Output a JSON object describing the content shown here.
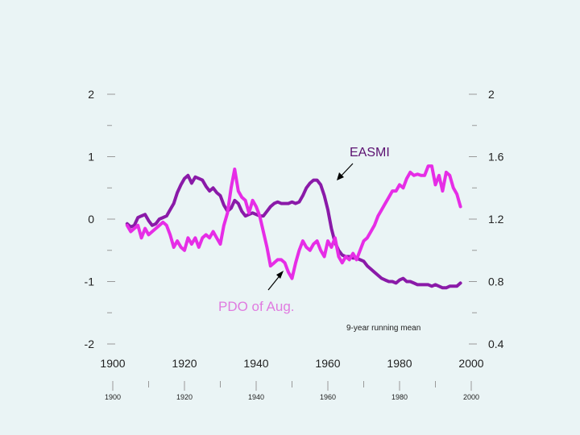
{
  "chart_data": {
    "type": "line",
    "title": "",
    "xlabel": "",
    "ylabel_left": "",
    "ylabel_right": "",
    "xlim": [
      1900,
      2000
    ],
    "ylim_left": [
      -2,
      2
    ],
    "ylim_right": [
      0.4,
      2
    ],
    "grid": false,
    "x_ticks": [
      "1900",
      "1920",
      "1940",
      "1960",
      "1980",
      "2000"
    ],
    "x_ticks_minor_row": [
      "1900",
      "1920",
      "1940",
      "1960",
      "1980",
      "2000"
    ],
    "y_ticks_left": [
      "2",
      "1",
      "0",
      "-1",
      "-2"
    ],
    "y_ticks_right": [
      "2",
      "1.6",
      "1.2",
      "0.8",
      "0.4"
    ],
    "annotations": {
      "easmi": "EASMI",
      "pdo": "PDO of Aug.",
      "note": "9-year running mean"
    },
    "series": [
      {
        "name": "EASMI",
        "axis": "right",
        "color": "#8a1aa8",
        "x": [
          1904,
          1905,
          1906,
          1907,
          1908,
          1909,
          1910,
          1911,
          1912,
          1913,
          1914,
          1915,
          1916,
          1917,
          1918,
          1919,
          1920,
          1921,
          1922,
          1923,
          1924,
          1925,
          1926,
          1927,
          1928,
          1929,
          1930,
          1931,
          1932,
          1933,
          1934,
          1935,
          1936,
          1937,
          1938,
          1939,
          1940,
          1941,
          1942,
          1943,
          1944,
          1945,
          1946,
          1947,
          1948,
          1949,
          1950,
          1951,
          1952,
          1953,
          1954,
          1955,
          1956,
          1957,
          1958,
          1959,
          1960,
          1961,
          1962,
          1963,
          1964,
          1965,
          1966,
          1967,
          1968,
          1969,
          1970,
          1971,
          1972,
          1973,
          1974,
          1975,
          1976,
          1977,
          1978,
          1979,
          1980,
          1981,
          1982,
          1983,
          1984,
          1985,
          1986,
          1987,
          1988,
          1989,
          1990,
          1991,
          1992,
          1993,
          1994,
          1995,
          1996,
          1997
        ],
        "y": [
          1.17,
          1.15,
          1.16,
          1.21,
          1.22,
          1.23,
          1.19,
          1.16,
          1.17,
          1.2,
          1.21,
          1.22,
          1.26,
          1.3,
          1.37,
          1.42,
          1.46,
          1.48,
          1.43,
          1.47,
          1.46,
          1.45,
          1.41,
          1.38,
          1.4,
          1.37,
          1.35,
          1.29,
          1.25,
          1.27,
          1.32,
          1.3,
          1.25,
          1.22,
          1.23,
          1.24,
          1.23,
          1.22,
          1.22,
          1.25,
          1.28,
          1.3,
          1.31,
          1.3,
          1.3,
          1.3,
          1.31,
          1.3,
          1.31,
          1.35,
          1.4,
          1.43,
          1.45,
          1.45,
          1.42,
          1.35,
          1.26,
          1.14,
          1.05,
          1.0,
          0.97,
          0.96,
          0.96,
          0.95,
          0.95,
          0.94,
          0.93,
          0.9,
          0.88,
          0.86,
          0.84,
          0.82,
          0.81,
          0.8,
          0.8,
          0.79,
          0.81,
          0.82,
          0.8,
          0.8,
          0.79,
          0.78,
          0.78,
          0.78,
          0.78,
          0.77,
          0.78,
          0.77,
          0.76,
          0.76,
          0.77,
          0.77,
          0.77,
          0.79
        ]
      },
      {
        "name": "PDO of Aug.",
        "axis": "left",
        "color": "#e62de6",
        "x": [
          1904,
          1905,
          1906,
          1907,
          1908,
          1909,
          1910,
          1911,
          1912,
          1913,
          1914,
          1915,
          1916,
          1917,
          1918,
          1919,
          1920,
          1921,
          1922,
          1923,
          1924,
          1925,
          1926,
          1927,
          1928,
          1929,
          1930,
          1931,
          1932,
          1933,
          1934,
          1935,
          1936,
          1937,
          1938,
          1939,
          1940,
          1941,
          1942,
          1943,
          1944,
          1945,
          1946,
          1947,
          1948,
          1949,
          1950,
          1951,
          1952,
          1953,
          1954,
          1955,
          1956,
          1957,
          1958,
          1959,
          1960,
          1961,
          1962,
          1963,
          1964,
          1965,
          1966,
          1967,
          1968,
          1969,
          1970,
          1971,
          1972,
          1973,
          1974,
          1975,
          1976,
          1977,
          1978,
          1979,
          1980,
          1981,
          1982,
          1983,
          1984,
          1985,
          1986,
          1987,
          1988,
          1989,
          1990,
          1991,
          1992,
          1993,
          1994,
          1995,
          1996,
          1997
        ],
        "y": [
          -0.1,
          -0.2,
          -0.15,
          -0.1,
          -0.3,
          -0.15,
          -0.25,
          -0.2,
          -0.15,
          -0.1,
          -0.05,
          -0.1,
          -0.25,
          -0.45,
          -0.35,
          -0.45,
          -0.5,
          -0.3,
          -0.4,
          -0.3,
          -0.45,
          -0.3,
          -0.25,
          -0.3,
          -0.2,
          -0.3,
          -0.4,
          -0.1,
          0.1,
          0.5,
          0.8,
          0.45,
          0.35,
          0.3,
          0.1,
          0.3,
          0.2,
          0.05,
          -0.2,
          -0.45,
          -0.75,
          -0.7,
          -0.65,
          -0.65,
          -0.7,
          -0.85,
          -0.95,
          -0.7,
          -0.5,
          -0.35,
          -0.45,
          -0.5,
          -0.4,
          -0.35,
          -0.5,
          -0.6,
          -0.35,
          -0.45,
          -0.3,
          -0.6,
          -0.7,
          -0.6,
          -0.65,
          -0.55,
          -0.65,
          -0.5,
          -0.35,
          -0.3,
          -0.2,
          -0.1,
          0.05,
          0.15,
          0.25,
          0.35,
          0.45,
          0.45,
          0.55,
          0.5,
          0.65,
          0.75,
          0.7,
          0.72,
          0.7,
          0.7,
          0.85,
          0.85,
          0.55,
          0.7,
          0.45,
          0.75,
          0.7,
          0.5,
          0.4,
          0.2
        ]
      }
    ]
  }
}
